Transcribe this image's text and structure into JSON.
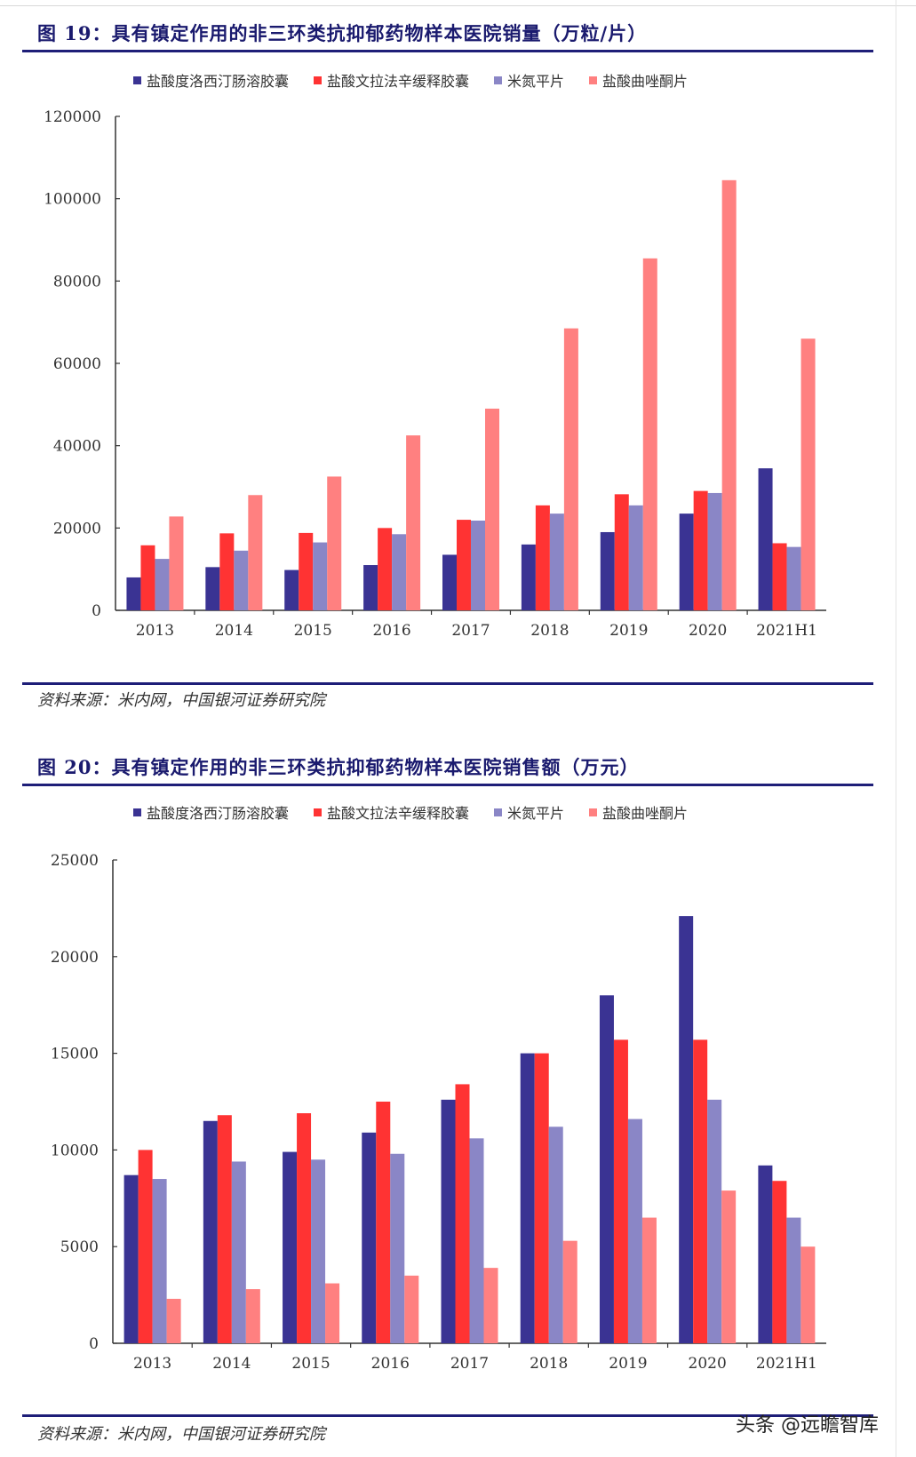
{
  "colors": {
    "s1": "#3a3393",
    "s2": "#ff3333",
    "s3": "#8a86c6",
    "s4": "#ff8080",
    "rule": "#1e1e78",
    "title": "#1a1a6e"
  },
  "watermark": "头条 @远瞻智库",
  "chart_data": [
    {
      "type": "bar",
      "title": "图 19：具有镇定作用的非三环类抗抑郁药物样本医院销量（万粒/片）",
      "source": "资料来源：米内网，中国银河证券研究院",
      "categories": [
        "2013",
        "2014",
        "2015",
        "2016",
        "2017",
        "2018",
        "2019",
        "2020",
        "2021H1"
      ],
      "ylim": [
        0,
        120000
      ],
      "yticks": [
        "0",
        "20000",
        "40000",
        "60000",
        "80000",
        "100000",
        "120000"
      ],
      "legend_position": "top",
      "grid": false,
      "series": [
        {
          "name": "盐酸度洛西汀肠溶胶囊",
          "values": [
            8000,
            10500,
            9800,
            11000,
            13500,
            16000,
            19000,
            23500,
            34500
          ]
        },
        {
          "name": "盐酸文拉法辛缓释胶囊",
          "values": [
            15800,
            18700,
            18800,
            20000,
            22000,
            25500,
            28200,
            29000,
            16300
          ]
        },
        {
          "name": "米氮平片",
          "values": [
            12500,
            14500,
            16500,
            18500,
            21800,
            23500,
            25500,
            28500,
            15400
          ]
        },
        {
          "name": "盐酸曲唑酮片",
          "values": [
            22800,
            28000,
            32500,
            42500,
            49000,
            68500,
            85500,
            104500,
            66000
          ]
        }
      ]
    },
    {
      "type": "bar",
      "title": "图 20：具有镇定作用的非三环类抗抑郁药物样本医院销售额（万元）",
      "source": "资料来源：米内网，中国银河证券研究院",
      "categories": [
        "2013",
        "2014",
        "2015",
        "2016",
        "2017",
        "2018",
        "2019",
        "2020",
        "2021H1"
      ],
      "ylim": [
        0,
        25000
      ],
      "yticks": [
        "0",
        "5000",
        "10000",
        "15000",
        "20000",
        "25000"
      ],
      "legend_position": "top",
      "grid": false,
      "series": [
        {
          "name": "盐酸度洛西汀肠溶胶囊",
          "values": [
            8700,
            11500,
            9900,
            10900,
            12600,
            15000,
            18000,
            22100,
            9200
          ]
        },
        {
          "name": "盐酸文拉法辛缓释胶囊",
          "values": [
            10000,
            11800,
            11900,
            12500,
            13400,
            15000,
            15700,
            15700,
            8400
          ]
        },
        {
          "name": "米氮平片",
          "values": [
            8500,
            9400,
            9500,
            9800,
            10600,
            11200,
            11600,
            12600,
            6500
          ]
        },
        {
          "name": "盐酸曲唑酮片",
          "values": [
            2300,
            2800,
            3100,
            3500,
            3900,
            5300,
            6500,
            7900,
            5000
          ]
        }
      ]
    }
  ]
}
